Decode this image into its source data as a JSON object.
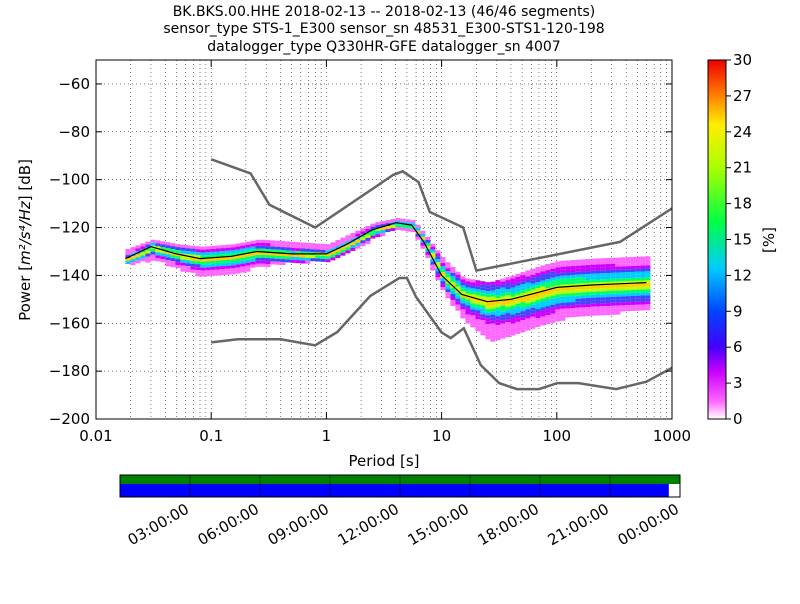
{
  "title": {
    "line1": "BK.BKS.00.HHE   2018-02-13 -- 2018-02-13  (46/46 segments)",
    "line2": "sensor_type STS-1_E300 sensor_sn 48531_E300-STS1-120-198",
    "line3": "datalogger_type Q330HR-GFE datalogger_sn 4007"
  },
  "colors": {
    "noise_model": "#666666",
    "mean_line": "#000000",
    "coverage_green": "#008000",
    "coverage_blue": "#0000ff",
    "grid": "#000000"
  },
  "chart_data": [
    {
      "type": "heatmap",
      "description_source": "probabilistic power spectral density (PPSD)",
      "xlabel": "Period [s]",
      "ylabel_prefix": "Power [",
      "ylabel_math": "m²/s⁴/Hz",
      "ylabel_suffix": "] [dB]",
      "x_scale": "log",
      "xlim": [
        0.01,
        1000
      ],
      "ylim": [
        -200,
        -50
      ],
      "x_ticks": [
        {
          "value": 0.01,
          "label": "0.01"
        },
        {
          "value": 0.1,
          "label": "0.1"
        },
        {
          "value": 1,
          "label": "1"
        },
        {
          "value": 10,
          "label": "10"
        },
        {
          "value": 100,
          "label": "100"
        },
        {
          "value": 1000,
          "label": "1000"
        }
      ],
      "y_ticks": [
        {
          "value": -60,
          "label": "−60"
        },
        {
          "value": -80,
          "label": "−80"
        },
        {
          "value": -100,
          "label": "−100"
        },
        {
          "value": -120,
          "label": "−120"
        },
        {
          "value": -140,
          "label": "−140"
        },
        {
          "value": -160,
          "label": "−160"
        },
        {
          "value": -180,
          "label": "−180"
        },
        {
          "value": -200,
          "label": "−200"
        }
      ],
      "colorbar": {
        "label": "[%]",
        "range": [
          0,
          30
        ],
        "ticks": [
          {
            "value": 0,
            "label": "0"
          },
          {
            "value": 3,
            "label": "3"
          },
          {
            "value": 6,
            "label": "6"
          },
          {
            "value": 9,
            "label": "9"
          },
          {
            "value": 12,
            "label": "12"
          },
          {
            "value": 15,
            "label": "15"
          },
          {
            "value": 18,
            "label": "18"
          },
          {
            "value": 21,
            "label": "21"
          },
          {
            "value": 24,
            "label": "24"
          },
          {
            "value": 27,
            "label": "27"
          },
          {
            "value": 30,
            "label": "30"
          }
        ]
      },
      "noise_models": {
        "high": {
          "x": [
            0.1,
            0.22,
            0.32,
            0.8,
            3.8,
            4.6,
            6.3,
            7.9,
            15.4,
            20,
            354,
            1000
          ],
          "y": [
            -91.5,
            -97.4,
            -110.5,
            -120,
            -98,
            -96.5,
            -101,
            -113.5,
            -120,
            -138,
            -126,
            -112
          ]
        },
        "low": {
          "x": [
            0.1,
            0.17,
            0.4,
            0.8,
            1.24,
            2.4,
            4.3,
            5,
            6,
            10,
            12,
            15.6,
            21.9,
            31.6,
            45,
            70,
            101,
            154,
            328,
            600,
            1000
          ],
          "y": [
            -168,
            -166.7,
            -166.7,
            -169.2,
            -163.7,
            -148.6,
            -141.1,
            -141.1,
            -149,
            -163.8,
            -166.2,
            -162.1,
            -177.5,
            -185,
            -187.5,
            -187.5,
            -185,
            -185,
            -187.5,
            -184.4,
            -178.6
          ]
        }
      },
      "mean_line": {
        "x": [
          0.018,
          0.03,
          0.05,
          0.08,
          0.15,
          0.25,
          0.5,
          1,
          1.5,
          2.5,
          4,
          5.5,
          7,
          10,
          15,
          25,
          40,
          70,
          100,
          200,
          600
        ],
        "y": [
          -133,
          -128,
          -131,
          -133,
          -132,
          -130,
          -131,
          -131,
          -127,
          -121,
          -118,
          -119,
          -126,
          -140,
          -148,
          -151,
          -150,
          -147,
          -145,
          -144,
          -143
        ]
      },
      "upper_band": {
        "x": [
          0.018,
          0.03,
          0.05,
          0.08,
          0.15,
          0.25,
          0.5,
          1,
          1.5,
          2.5,
          4,
          5.5,
          7,
          10,
          15,
          25,
          40,
          70,
          100,
          200,
          600
        ],
        "y": [
          -129,
          -125,
          -127,
          -128,
          -127,
          -125,
          -126,
          -127,
          -123,
          -118,
          -116,
          -117,
          -123,
          -133,
          -141,
          -143,
          -140,
          -136,
          -134,
          -133,
          -132
        ]
      },
      "lower_band": {
        "x": [
          0.018,
          0.03,
          0.05,
          0.08,
          0.15,
          0.25,
          0.5,
          1,
          1.5,
          2.5,
          4,
          5.5,
          7,
          10,
          15,
          25,
          40,
          70,
          100,
          200,
          600
        ],
        "y": [
          -135,
          -133,
          -137,
          -140,
          -139,
          -136,
          -134,
          -134,
          -130,
          -124,
          -120,
          -121,
          -131,
          -147,
          -158,
          -167,
          -164,
          -161,
          -158,
          -156,
          -154
        ]
      }
    },
    {
      "type": "bar",
      "description_source": "data coverage timeline",
      "x_ticks": [
        "03:00:00",
        "06:00:00",
        "09:00:00",
        "12:00:00",
        "15:00:00",
        "18:00:00",
        "21:00:00",
        "00:00:00"
      ],
      "green_coverage_fraction": 1.0,
      "blue_coverage_fraction": 0.98
    }
  ]
}
